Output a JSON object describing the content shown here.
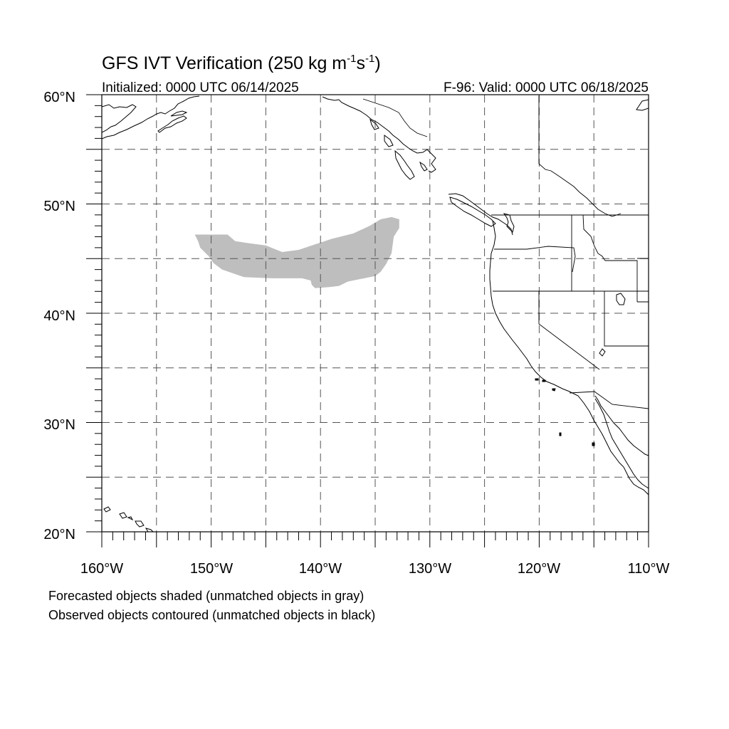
{
  "title": {
    "main": "GFS IVT Verification (250 kg m",
    "sup1": "-1",
    "mid": "s",
    "sup2": "-1",
    "close": ")"
  },
  "subtitle_left": "Initialized: 0000 UTC 06/14/2025",
  "subtitle_right": "F-96: Valid: 0000 UTC 06/18/2025",
  "footnotes": [
    "Forecasted objects shaded (unmatched objects in gray)",
    "Observed objects contoured (unmatched objects in black)"
  ],
  "map": {
    "lon_range": [
      -160,
      -110
    ],
    "lat_range": [
      20,
      60
    ],
    "grid": "dashed, every 5 degrees",
    "unmatched_forecast_color": "#bebebe",
    "lat_labels": [
      {
        "lat": 60,
        "label": "60°N"
      },
      {
        "lat": 50,
        "label": "50°N"
      },
      {
        "lat": 40,
        "label": "40°N"
      },
      {
        "lat": 30,
        "label": "30°N"
      },
      {
        "lat": 20,
        "label": "20°N"
      }
    ],
    "lon_labels": [
      {
        "lon": -160,
        "label": "160°W"
      },
      {
        "lon": -150,
        "label": "150°W"
      },
      {
        "lon": -140,
        "label": "140°W"
      },
      {
        "lon": -130,
        "label": "130°W"
      },
      {
        "lon": -120,
        "label": "120°W"
      },
      {
        "lon": -110,
        "label": "110°W"
      }
    ],
    "forecast_object": {
      "status": "unmatched",
      "outline_lonlat": [
        [
          -151.5,
          47.2
        ],
        [
          -148.5,
          47.2
        ],
        [
          -147.8,
          46.6
        ],
        [
          -146.5,
          46.4
        ],
        [
          -145.0,
          46.2
        ],
        [
          -143.5,
          45.6
        ],
        [
          -142.0,
          45.8
        ],
        [
          -140.5,
          46.3
        ],
        [
          -139.0,
          46.8
        ],
        [
          -137.0,
          47.3
        ],
        [
          -135.5,
          48.0
        ],
        [
          -134.5,
          48.6
        ],
        [
          -133.5,
          48.8
        ],
        [
          -132.8,
          48.6
        ],
        [
          -132.8,
          47.8
        ],
        [
          -133.3,
          47.0
        ],
        [
          -133.5,
          45.5
        ],
        [
          -134.0,
          44.5
        ],
        [
          -134.5,
          43.8
        ],
        [
          -135.0,
          43.4
        ],
        [
          -136.5,
          43.1
        ],
        [
          -137.5,
          42.9
        ],
        [
          -138.3,
          42.5
        ],
        [
          -139.2,
          42.4
        ],
        [
          -140.5,
          42.3
        ],
        [
          -140.8,
          42.6
        ],
        [
          -140.9,
          43.0
        ],
        [
          -141.7,
          43.2
        ],
        [
          -143.5,
          43.2
        ],
        [
          -144.5,
          43.2
        ],
        [
          -147.0,
          43.3
        ],
        [
          -149.0,
          44.0
        ],
        [
          -149.8,
          44.6
        ],
        [
          -150.2,
          45.2
        ],
        [
          -151.0,
          46.0
        ],
        [
          -151.2,
          46.6
        ]
      ]
    }
  }
}
